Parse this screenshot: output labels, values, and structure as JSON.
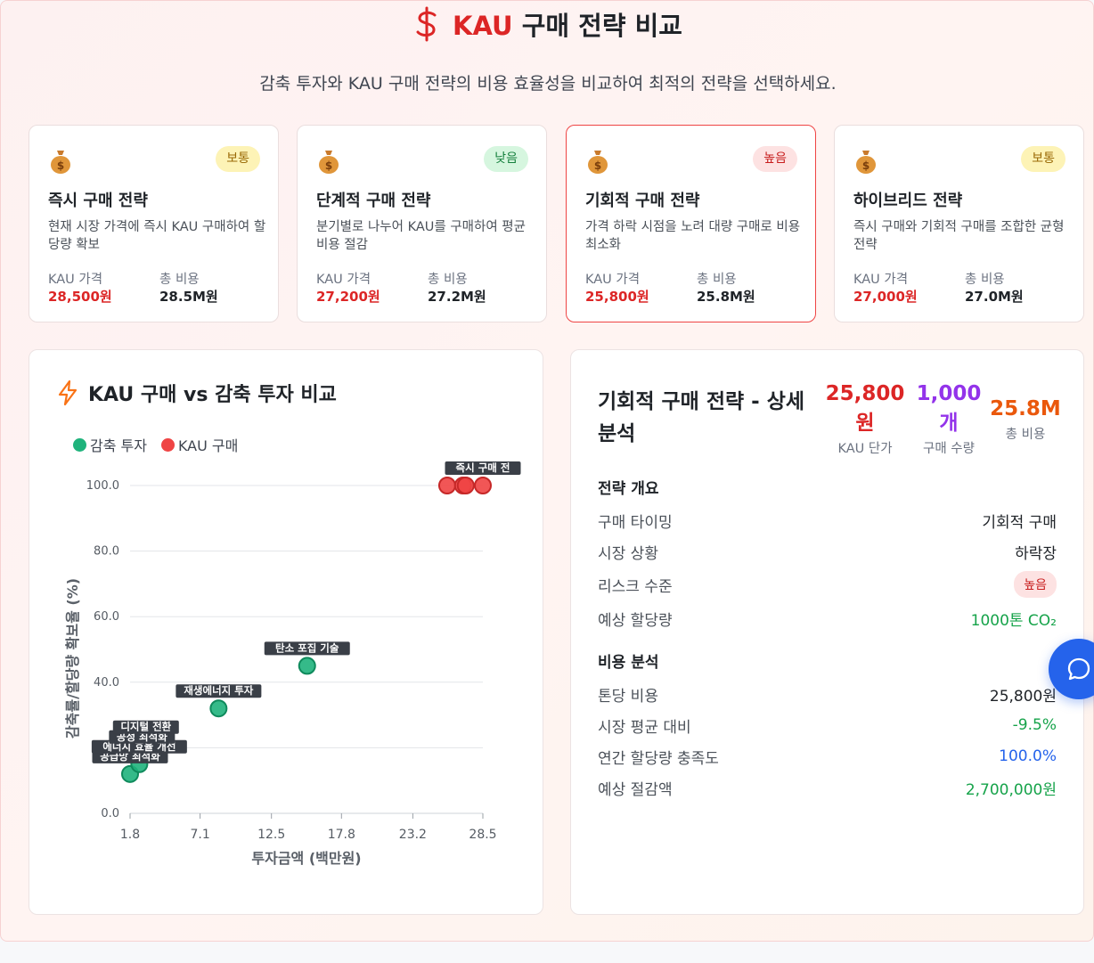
{
  "header": {
    "title_accent": "KAU",
    "title_rest": "구매 전략 비교",
    "subtitle": "감축 투자와 KAU 구매 전략의 비용 효율성을 비교하여 최적의 전략을 선택하세요."
  },
  "cards": [
    {
      "badge": "보통",
      "title": "즉시 구매 전략",
      "desc": "현재 시장 가격에 즉시 KAU 구매하여 할당량 확보",
      "price_label": "KAU 가격",
      "price": "28,500원",
      "cost_label": "총 비용",
      "cost": "28.5M원"
    },
    {
      "badge": "낮음",
      "title": "단계적 구매 전략",
      "desc": "분기별로 나누어 KAU를 구매하여 평균 비용 절감",
      "price_label": "KAU 가격",
      "price": "27,200원",
      "cost_label": "총 비용",
      "cost": "27.2M원"
    },
    {
      "badge": "높음",
      "title": "기회적 구매 전략",
      "desc": "가격 하락 시점을 노려 대량 구매로 비용 최소화",
      "price_label": "KAU 가격",
      "price": "25,800원",
      "cost_label": "총 비용",
      "cost": "25.8M원"
    },
    {
      "badge": "보통",
      "title": "하이브리드 전략",
      "desc": "즉시 구매와 기회적 구매를 조합한 균형 전략",
      "price_label": "KAU 가격",
      "price": "27,000원",
      "cost_label": "총 비용",
      "cost": "27.0M원"
    }
  ],
  "chart_panel": {
    "title": "KAU 구매 vs 감축 투자 비교",
    "legend": [
      "감축 투자",
      "KAU 구매"
    ]
  },
  "chart_data": {
    "type": "scatter",
    "xlabel": "투자금액 (백만원)",
    "ylabel": "감축률/할당량 확보율 (%)",
    "xlim": [
      1.8,
      28.5
    ],
    "ylim": [
      0,
      100
    ],
    "x_ticks": [
      "1.8",
      "7.1",
      "12.5",
      "17.8",
      "23.2",
      "28.5"
    ],
    "y_ticks": [
      "0.0",
      "20.0",
      "40.0",
      "60.0",
      "80.0",
      "100.0"
    ],
    "grid": true,
    "legend_position": "top-left",
    "colors": {
      "감축 투자": "#1fb37c",
      "KAU 구매": "#ef4444"
    },
    "series": [
      {
        "name": "감축 투자",
        "points": [
          {
            "label": "공급망 최적화",
            "x": 1.8,
            "y": 12
          },
          {
            "label": "에너지 효율 개선",
            "x": 2.5,
            "y": 15
          },
          {
            "label": "공정 최적화",
            "x": 2.7,
            "y": 18
          },
          {
            "label": "디지털 전환",
            "x": 3.0,
            "y": 21
          },
          {
            "label": "재생에너지 투자",
            "x": 8.5,
            "y": 32
          },
          {
            "label": "탄소 포집 기술",
            "x": 15.2,
            "y": 45
          }
        ]
      },
      {
        "name": "KAU 구매",
        "points": [
          {
            "label": "",
            "x": 25.8,
            "y": 100
          },
          {
            "label": "",
            "x": 27.0,
            "y": 100
          },
          {
            "label": "",
            "x": 27.2,
            "y": 100
          },
          {
            "label": "즉시 구매 전",
            "x": 28.5,
            "y": 100
          }
        ]
      }
    ]
  },
  "detail": {
    "title": "기회적 구매 전략 - 상세 분석",
    "stats": [
      {
        "value_line1": "25,800",
        "value_line2": "원",
        "label": "KAU 단가",
        "color": "#dc2626"
      },
      {
        "value_line1": "1,000",
        "value_line2": "개",
        "label": "구매 수량",
        "color": "#9333ea"
      },
      {
        "value_line1": "25.8M",
        "value_line2": "",
        "label": "총 비용",
        "color": "#ea580c"
      }
    ],
    "overview_title": "전략 개요",
    "overview": [
      {
        "k": "구매 타이밍",
        "v": "기회적 구매"
      },
      {
        "k": "시장 상황",
        "v": "하락장"
      },
      {
        "k": "리스크 수준",
        "v": "높음"
      },
      {
        "k": "예상 할당량",
        "v": "1000톤 CO₂"
      }
    ],
    "cost_title": "비용 분석",
    "cost": [
      {
        "k": "톤당 비용",
        "v": "25,800원"
      },
      {
        "k": "시장 평균 대비",
        "v": "-9.5%"
      },
      {
        "k": "연간 할당량 충족도",
        "v": "100.0%"
      },
      {
        "k": "예상 절감액",
        "v": "2,700,000원"
      }
    ]
  }
}
